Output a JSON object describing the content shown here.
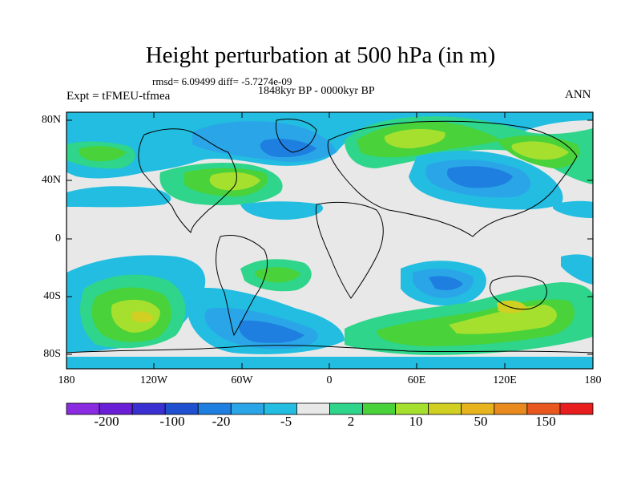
{
  "title": "Height perturbation at 500 hPa (in m)",
  "stats": "rmsd= 6.09499  diff= -5.7274e-09",
  "period": "1848kyr BP - 0000kyr BP",
  "experiment": "Expt = tFMEU-tfmea",
  "season": "ANN",
  "axes": {
    "lat_ticks": [
      "80N",
      "40N",
      "0",
      "40S",
      "80S"
    ],
    "lon_ticks": [
      "180",
      "120W",
      "60W",
      "0",
      "60E",
      "120E",
      "180"
    ]
  },
  "colorbar": {
    "colors": [
      "#8a2be2",
      "#6a1fd6",
      "#3a2fd0",
      "#1e50d0",
      "#1e7fe0",
      "#2aa6e8",
      "#22bde0",
      "#e8e8e8",
      "#2ed58a",
      "#49d23a",
      "#a6e02e",
      "#d0cf22",
      "#e8b41e",
      "#e88a1e",
      "#e8581e",
      "#e81e1e"
    ],
    "labels": [
      "-200",
      "-100",
      "-20",
      "-5",
      "2",
      "10",
      "50",
      "150"
    ]
  },
  "field_colors": {
    "neutral": "#e8e8e8",
    "pos1": "#2ed58a",
    "pos2": "#49d23a",
    "pos3": "#a6e02e",
    "pos4": "#d0cf22",
    "pos5": "#e8b41e",
    "neg1": "#22bde0",
    "neg2": "#2aa6e8",
    "neg3": "#1e7fe0",
    "neg4": "#1e50d0"
  }
}
